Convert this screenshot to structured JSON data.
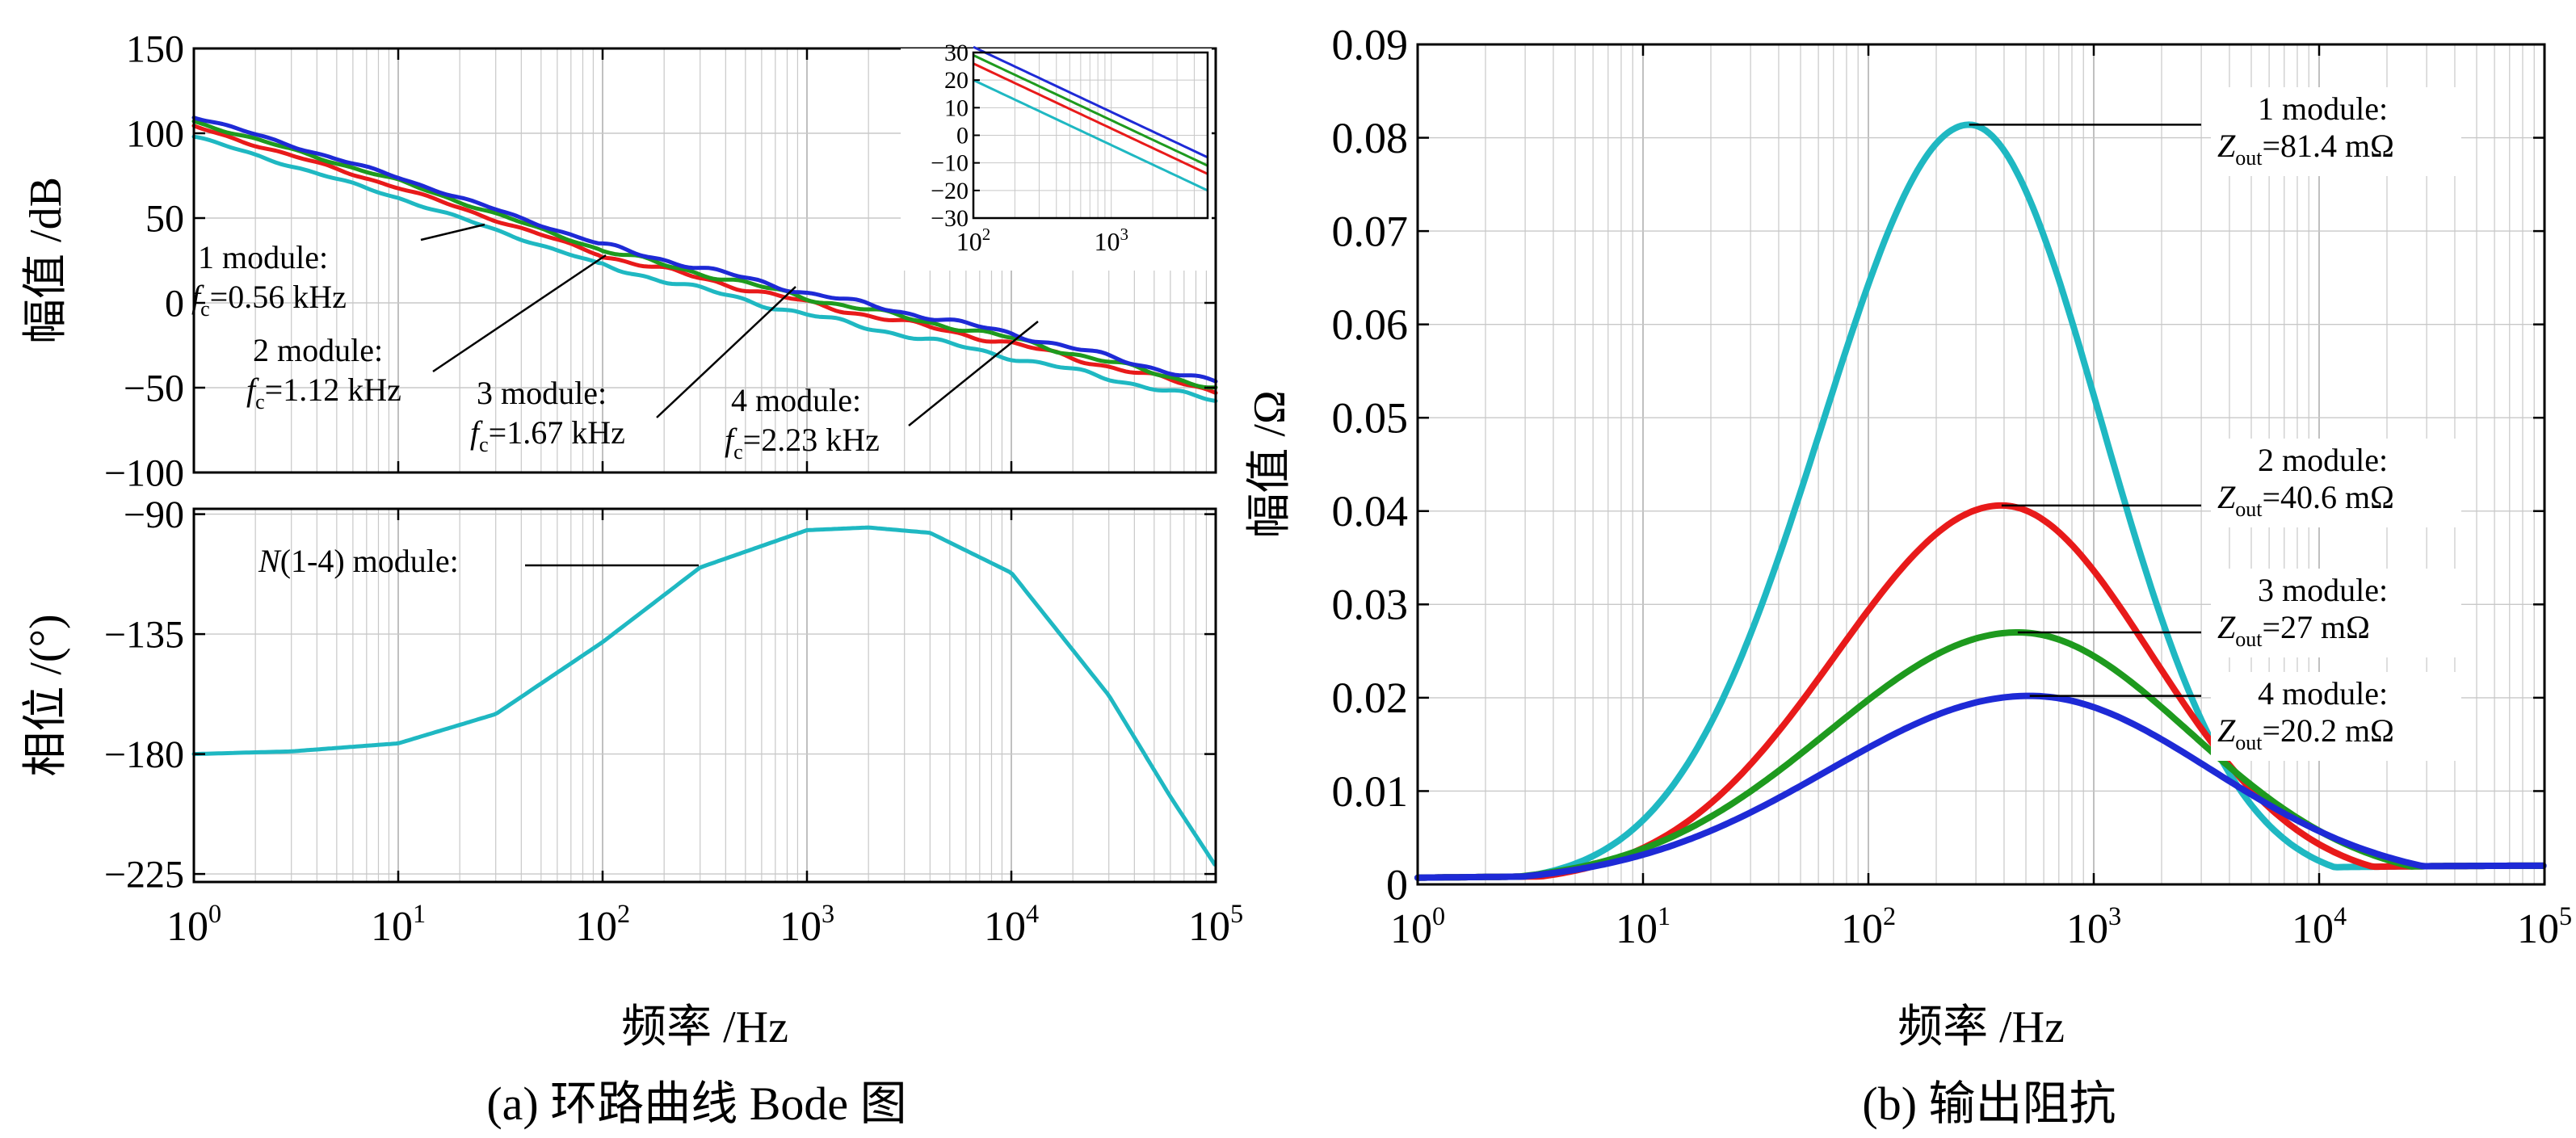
{
  "colors": {
    "module1": "#1fb8c2",
    "module2": "#e81a1a",
    "module3": "#1e9a1e",
    "module4": "#1e2ad6",
    "phase": "#1fb8c2",
    "grid": "#c8c8c8",
    "axis": "#000000"
  },
  "captions": {
    "a": "(a) 环路曲线 Bode 图",
    "b": "(b) 输出阻抗"
  },
  "chart_data": [
    {
      "id": "bode-magnitude",
      "type": "line",
      "ylabel": "幅值 /dB",
      "xscale": "log",
      "xlim": [
        1,
        100000
      ],
      "ylim": [
        -100,
        150
      ],
      "yticks": [
        150,
        100,
        50,
        0,
        -50,
        -100
      ],
      "ytick_labels": [
        "150",
        "100",
        "50",
        "0",
        "−50",
        "−100"
      ],
      "grid": true,
      "series": [
        {
          "name": "1 module",
          "color_key": "module1",
          "x": [
            1,
            10,
            100,
            1000,
            10000,
            100000
          ],
          "y": [
            98,
            62,
            22,
            -7,
            -32,
            -58
          ]
        },
        {
          "name": "2 module",
          "color_key": "module2",
          "x": [
            1,
            10,
            100,
            1000,
            10000,
            100000
          ],
          "y": [
            104,
            68,
            28,
            0,
            -24,
            -52
          ]
        },
        {
          "name": "3 module",
          "color_key": "module3",
          "x": [
            1,
            10,
            100,
            1000,
            10000,
            100000
          ],
          "y": [
            107,
            72,
            31,
            3,
            -21,
            -50
          ]
        },
        {
          "name": "4 module",
          "color_key": "module4",
          "x": [
            1,
            10,
            100,
            1000,
            10000,
            100000
          ],
          "y": [
            110,
            74,
            34,
            6,
            -18,
            -47
          ]
        }
      ],
      "annotations": [
        {
          "label": "1 module:",
          "fc_value": "=0.56 kHz",
          "x": 560
        },
        {
          "label": "2 module:",
          "fc_value": "=1.12 kHz",
          "x": 1120
        },
        {
          "label": "3 module:",
          "fc_value": "=1.67 kHz",
          "x": 1670
        },
        {
          "label": "4 module:",
          "fc_value": "=2.23 kHz",
          "x": 2230
        }
      ],
      "inset": {
        "xscale": "log",
        "xlim": [
          100,
          5000
        ],
        "ylim": [
          -30,
          30
        ],
        "yticks": [
          30,
          20,
          10,
          0,
          -10,
          -20,
          -30
        ],
        "ytick_labels": [
          "30",
          "20",
          "10",
          "0",
          "−10",
          "−20",
          "−30"
        ],
        "series": [
          {
            "color_key": "module1",
            "x": [
              100,
              5000
            ],
            "y": [
              20,
              -20
            ]
          },
          {
            "color_key": "module2",
            "x": [
              100,
              5000
            ],
            "y": [
              26,
              -14
            ]
          },
          {
            "color_key": "module3",
            "x": [
              100,
              5000
            ],
            "y": [
              29,
              -11
            ]
          },
          {
            "color_key": "module4",
            "x": [
              100,
              5000
            ],
            "y": [
              32,
              -8
            ]
          }
        ]
      }
    },
    {
      "id": "bode-phase",
      "type": "line",
      "ylabel": "相位 /(°)",
      "xlabel": "频率 /Hz",
      "xscale": "log",
      "xlim": [
        1,
        100000
      ],
      "ylim": [
        -228,
        -88
      ],
      "yticks": [
        -90,
        -135,
        -180,
        -225
      ],
      "ytick_labels": [
        "−90",
        "−135",
        "−180",
        "−225"
      ],
      "grid": true,
      "series": [
        {
          "name": "N(1-4) module",
          "color_key": "phase",
          "x": [
            1,
            3,
            10,
            30,
            100,
            300,
            1000,
            2000,
            4000,
            10000,
            30000,
            60000,
            100000
          ],
          "y": [
            -180,
            -179,
            -176,
            -165,
            -138,
            -110,
            -96,
            -95,
            -97,
            -112,
            -158,
            -196,
            -222
          ]
        }
      ],
      "annotation": {
        "label_italic": "N",
        "label_rest": "(1-4) module:",
        "x": 350
      }
    },
    {
      "id": "output-impedance",
      "type": "line",
      "ylabel": "幅值 /Ω",
      "xlabel": "频率 /Hz",
      "xscale": "log",
      "xlim": [
        1,
        100000
      ],
      "ylim": [
        0,
        0.09
      ],
      "yticks": [
        0,
        0.01,
        0.02,
        0.03,
        0.04,
        0.05,
        0.06,
        0.07,
        0.08,
        0.09
      ],
      "ytick_labels": [
        "0",
        "0.01",
        "0.02",
        "0.03",
        "0.04",
        "0.05",
        "0.06",
        "0.07",
        "0.08",
        "0.09"
      ],
      "grid": true,
      "series": [
        {
          "name": "1 module",
          "color_key": "module1",
          "peak_x": 280,
          "peak_y": 0.0814,
          "width": 0.62
        },
        {
          "name": "2 module",
          "color_key": "module2",
          "peak_x": 390,
          "peak_y": 0.0406,
          "width": 0.7
        },
        {
          "name": "3 module",
          "color_key": "module3",
          "peak_x": 460,
          "peak_y": 0.027,
          "width": 0.8
        },
        {
          "name": "4 module",
          "color_key": "module4",
          "peak_x": 520,
          "peak_y": 0.0202,
          "width": 0.85
        }
      ],
      "annotations": [
        {
          "label": "1 module:",
          "zout_value": "=81.4 mΩ",
          "x": 280,
          "y": 0.0814
        },
        {
          "label": "2 module:",
          "zout_value": "=40.6 mΩ",
          "x": 390,
          "y": 0.0406
        },
        {
          "label": "3 module:",
          "zout_value": "=27 mΩ",
          "x": 460,
          "y": 0.027
        },
        {
          "label": "4 module:",
          "zout_value": "=20.2 mΩ",
          "x": 520,
          "y": 0.0202
        }
      ]
    }
  ],
  "xtick_labels": [
    {
      "base": "10",
      "exp": "0"
    },
    {
      "base": "10",
      "exp": "1"
    },
    {
      "base": "10",
      "exp": "2"
    },
    {
      "base": "10",
      "exp": "3"
    },
    {
      "base": "10",
      "exp": "4"
    },
    {
      "base": "10",
      "exp": "5"
    }
  ],
  "inset_xtick_labels": [
    {
      "base": "10",
      "exp": "2"
    },
    {
      "base": "10",
      "exp": "3"
    }
  ],
  "symbols": {
    "fc_main": "f",
    "fc_sub": "c",
    "zout_main": "Z",
    "zout_sub": "out"
  }
}
